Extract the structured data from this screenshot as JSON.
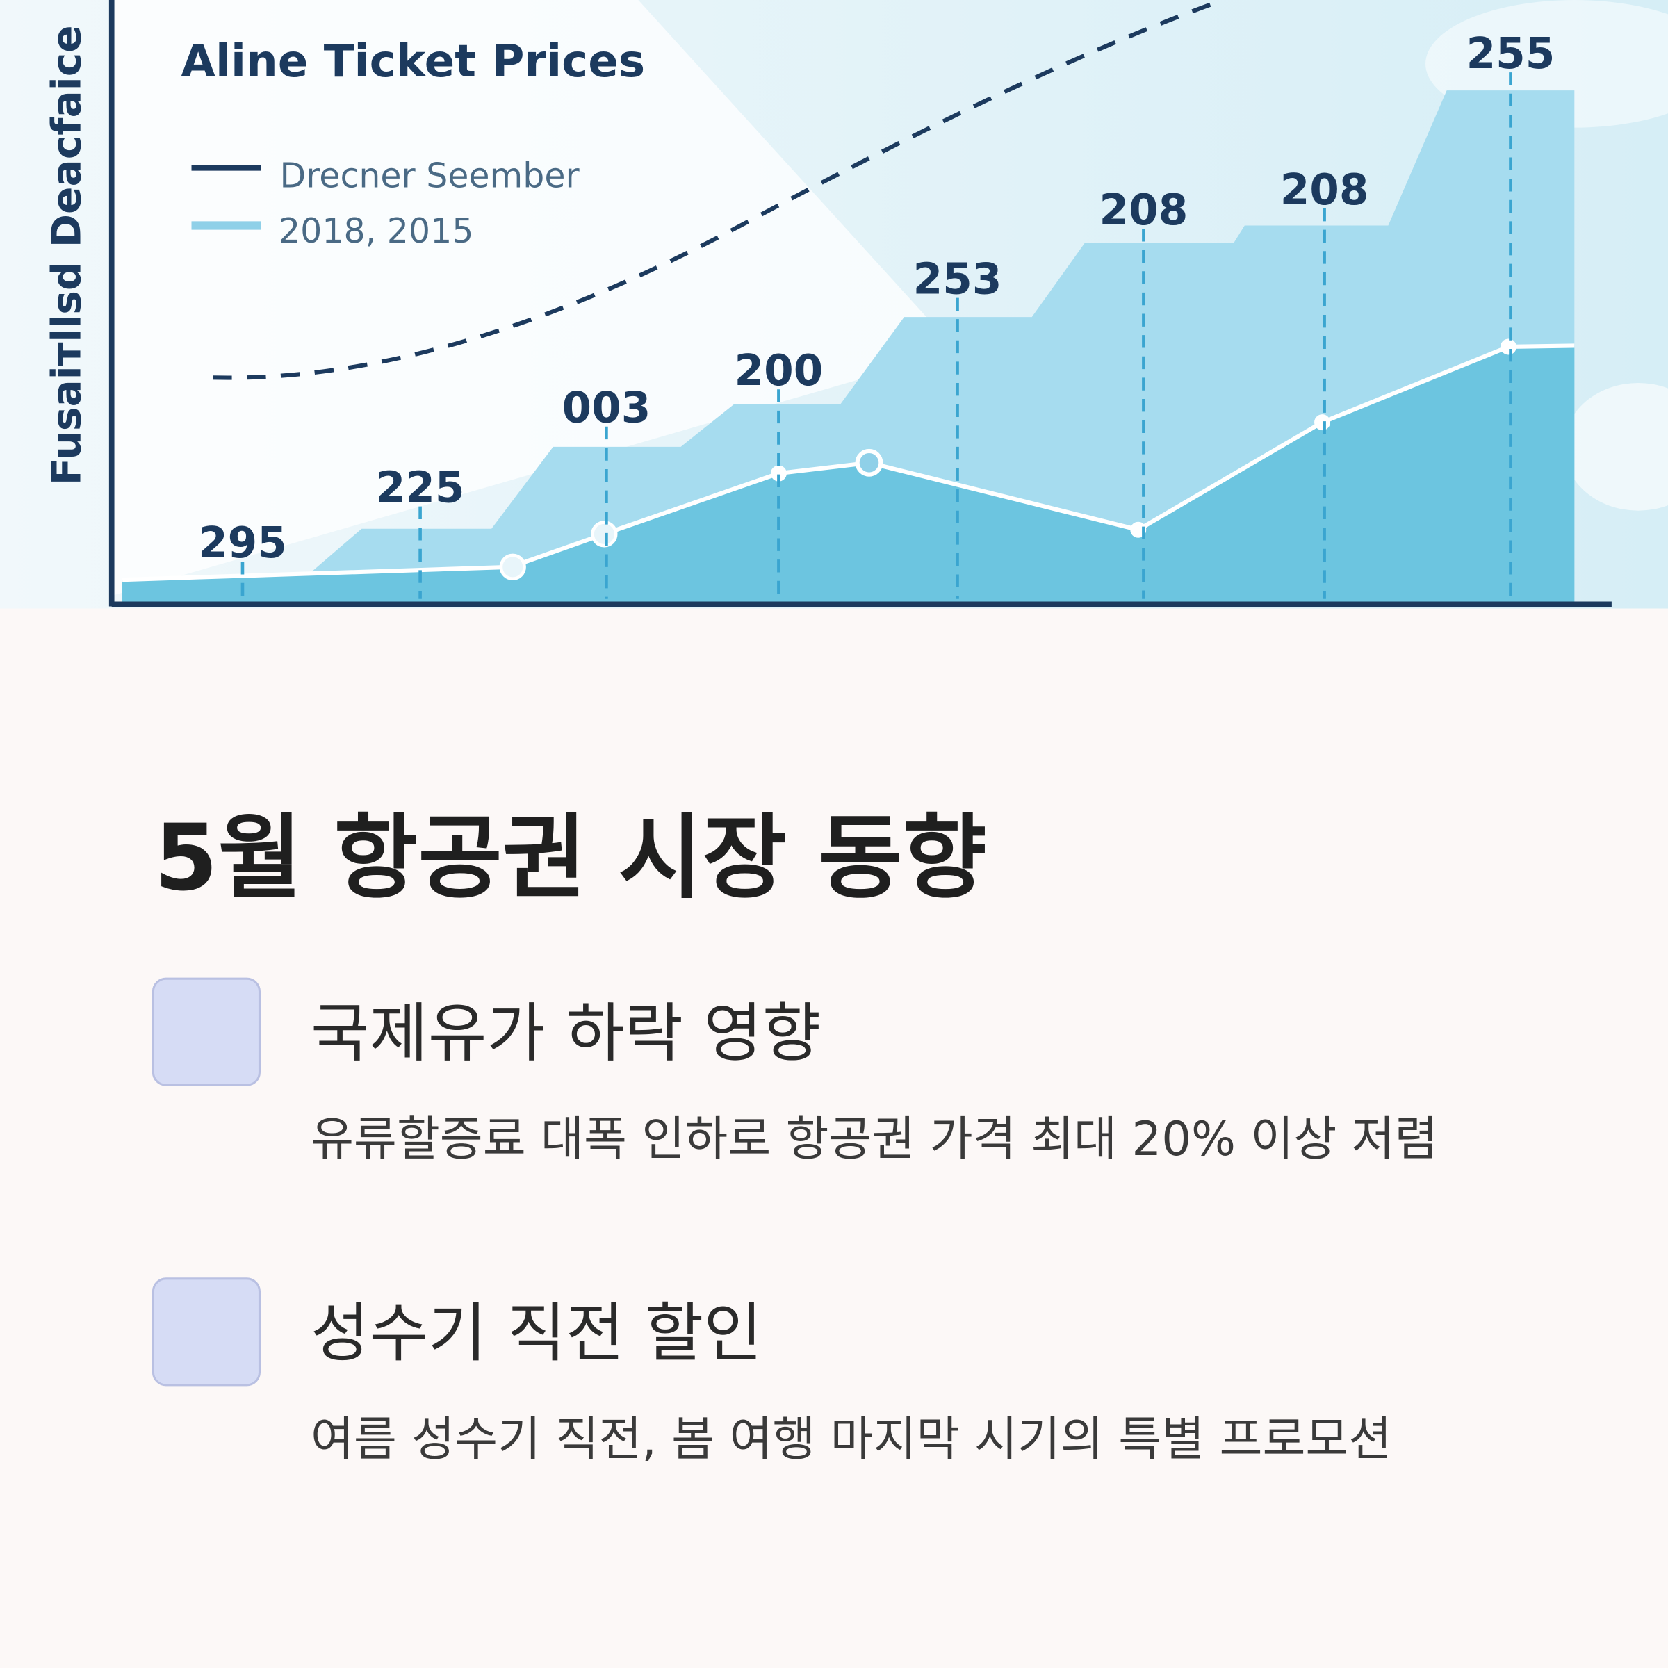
{
  "chart_image": {
    "title": "Aline Ticket Prices",
    "legend": [
      "Drecner Seember",
      "2018, 2015"
    ],
    "y_label": "Fusaiтllsd Deacfaice",
    "step_labels": [
      "295",
      "225",
      "003",
      "200",
      "253",
      "208",
      "208",
      "255"
    ]
  },
  "heading": "5월 항공권 시장 동향",
  "items": [
    {
      "title": "국제유가 하락 영향",
      "description": "유류할증료 대폭 인하로 항공권 가격 최대 20% 이상 저렴"
    },
    {
      "title": "성수기 직전 할인",
      "description": "여름 성수기 직전, 봄 여행 마지막 시기의 특별 프로모션"
    }
  ]
}
